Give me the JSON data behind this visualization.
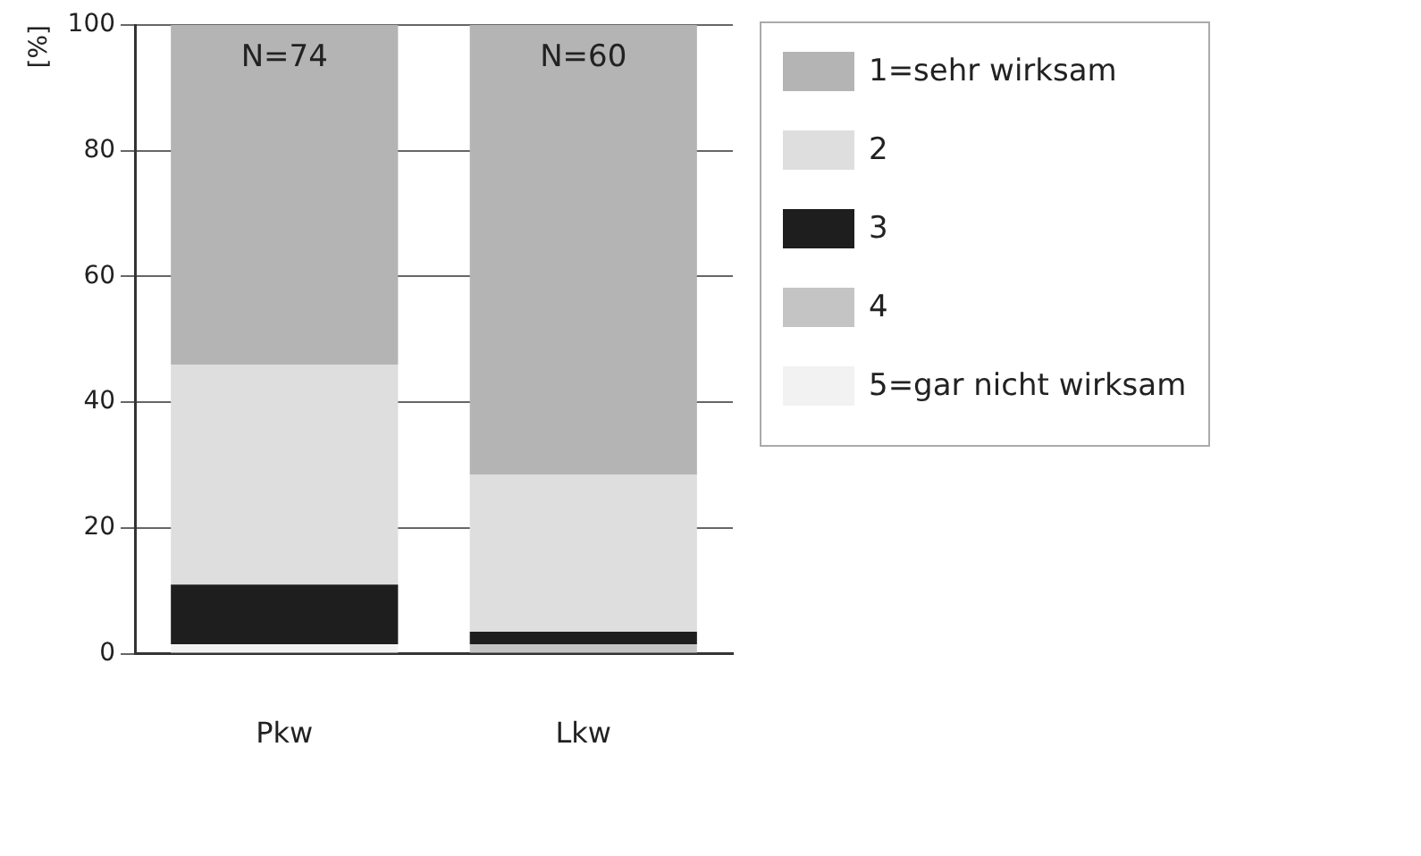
{
  "chart_data": {
    "type": "bar",
    "stacked": true,
    "ylabel": "[%]",
    "categories": [
      "Pkw",
      "Lkw"
    ],
    "series": [
      {
        "name": "5=gar nicht wirksam",
        "color": "#f2f2f2",
        "values": [
          1.5,
          0
        ]
      },
      {
        "name": "4",
        "color": "#c4c4c4",
        "values": [
          0,
          1.5
        ]
      },
      {
        "name": "3",
        "color": "#1e1e1e",
        "values": [
          9.5,
          2
        ]
      },
      {
        "name": "2",
        "color": "#dedede",
        "values": [
          35,
          25
        ]
      },
      {
        "name": "1=sehr wirksam",
        "color": "#b4b4b4",
        "values": [
          54,
          71.5
        ]
      }
    ],
    "ylim": [
      0,
      100
    ],
    "yticks": [
      0,
      20,
      40,
      60,
      80,
      100
    ],
    "grid": "y",
    "legend": "right",
    "annotations": [
      {
        "text": "N=74",
        "x": "Pkw",
        "y": 100
      },
      {
        "text": "N=60",
        "x": "Lkw",
        "y": 100
      }
    ]
  }
}
